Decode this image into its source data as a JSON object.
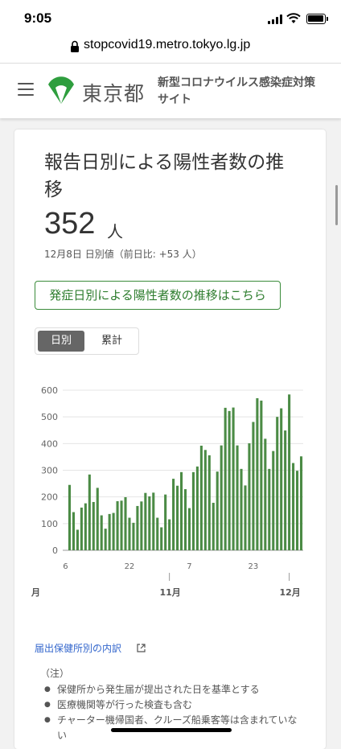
{
  "status_bar": {
    "time": "9:05"
  },
  "browser": {
    "url": "stopcovid19.metro.tokyo.lg.jp"
  },
  "header": {
    "logo_text": "東京都",
    "site_title": "新型コロナウイルス感染症対策サイト"
  },
  "card": {
    "title": "報告日別による陽性者数の推移",
    "value": "352",
    "unit": "人",
    "date_note": "12月8日 日別値（前日比: +53 人）",
    "onset_link": "発症日別による陽性者数の推移はこちら",
    "toggle": {
      "daily": "日別",
      "cumulative": "累計"
    }
  },
  "colors": {
    "bar": "#4b8b45",
    "link": "#3366cc",
    "accent": "#2e7d2e"
  },
  "chart_data": {
    "type": "bar",
    "title": "",
    "ylim": [
      0,
      600
    ],
    "yticks": [
      0,
      100,
      200,
      300,
      400,
      500,
      600
    ],
    "xtick_labels": [
      {
        "index": 0,
        "label": "6"
      },
      {
        "index": 16,
        "label": "22"
      },
      {
        "index": 31,
        "label": "7"
      },
      {
        "index": 47,
        "label": "23"
      }
    ],
    "month_labels": [
      {
        "index": -4,
        "label": "月"
      },
      {
        "index": 25,
        "label": "11月"
      },
      {
        "index": 55,
        "label": "12月"
      }
    ],
    "values": [
      245,
      143,
      77,
      160,
      176,
      284,
      181,
      234,
      131,
      81,
      136,
      140,
      184,
      186,
      199,
      122,
      103,
      166,
      183,
      215,
      202,
      216,
      122,
      86,
      209,
      116,
      268,
      242,
      293,
      229,
      158,
      293,
      314,
      392,
      376,
      356,
      178,
      295,
      393,
      534,
      522,
      535,
      393,
      305,
      243,
      401,
      481,
      570,
      561,
      418,
      305,
      372,
      500,
      532,
      449,
      584,
      327,
      298,
      352
    ],
    "grid": true
  },
  "links": {
    "breakdown": "届出保健所別の内訳"
  },
  "notes": {
    "heading": "（注）",
    "items": [
      "保健所から発生届が提出された日を基準とする",
      "医療機関等が行った検査も含む",
      "チャーター機帰国者、クルーズ船乗客等は含まれていない"
    ]
  }
}
